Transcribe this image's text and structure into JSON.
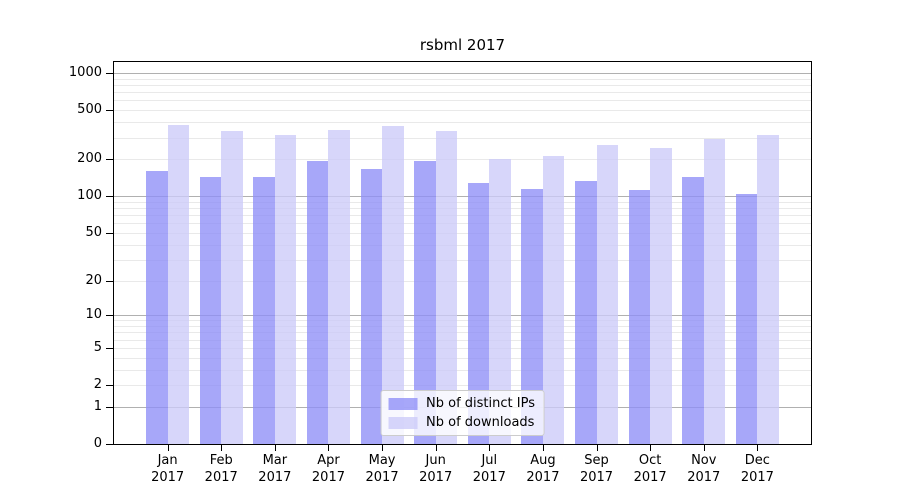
{
  "chart_data": {
    "type": "bar",
    "title": "rsbml 2017",
    "categories": [
      "Jan",
      "Feb",
      "Mar",
      "Apr",
      "May",
      "Jun",
      "Jul",
      "Aug",
      "Sep",
      "Oct",
      "Nov",
      "Dec"
    ],
    "x_sublabel": "2017",
    "series": [
      {
        "name": "Nb of distinct IPs",
        "color": "#8e8ef7",
        "values": [
          160,
          144,
          143,
          195,
          168,
          195,
          128,
          115,
          133,
          112,
          143,
          104
        ]
      },
      {
        "name": "Nb of downloads",
        "color": "#cccbf9",
        "values": [
          380,
          340,
          317,
          345,
          375,
          338,
          200,
          214,
          260,
          245,
          293,
          313
        ]
      }
    ],
    "y_ticks": [
      0,
      1,
      2,
      5,
      10,
      20,
      50,
      100,
      200,
      500,
      1000
    ],
    "y_scale": "log10(value+1)",
    "ylim": [
      0,
      1229
    ],
    "grid": "both",
    "grid_major_color": "#b0b0b0",
    "grid_minor_color": "#e9e9e9",
    "axis_color": "#000000",
    "legend_position": "lower center"
  }
}
